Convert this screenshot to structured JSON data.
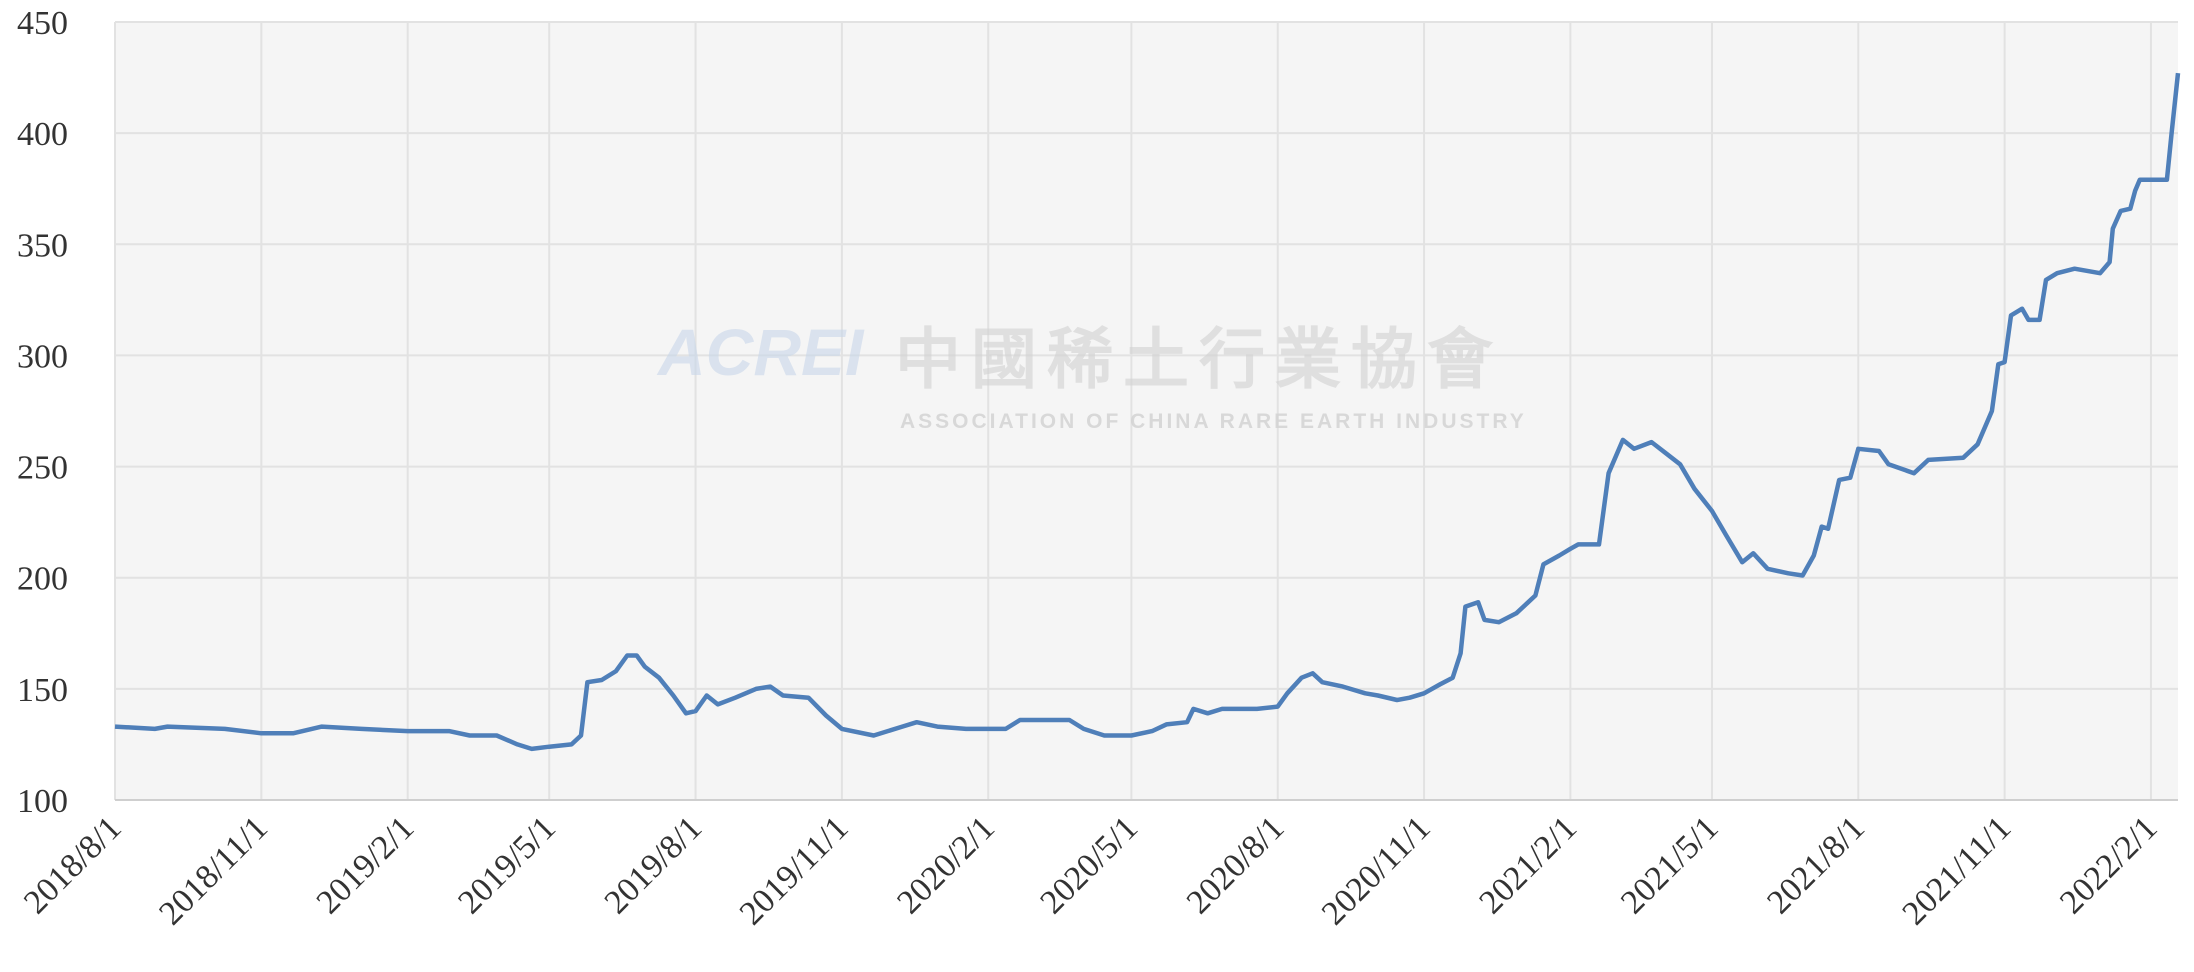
{
  "chart_data": {
    "type": "line",
    "watermark": {
      "logo": "ACREI",
      "name": "中國稀土行業協會",
      "subtitle": "ASSOCIATION OF CHINA RARE EARTH INDUSTRY"
    },
    "x": [
      "2018/8/1",
      "2018/8/26",
      "2018/9/3",
      "2018/10/9",
      "2018/11/1",
      "2018/11/21",
      "2018/12/9",
      "2019/1/3",
      "2019/2/1",
      "2019/2/27",
      "2019/3/12",
      "2019/3/29",
      "2019/4/11",
      "2019/4/20",
      "2019/5/1",
      "2019/5/15",
      "2019/5/21",
      "2019/5/25",
      "2019/6/3",
      "2019/6/12",
      "2019/6/19",
      "2019/6/25",
      "2019/6/30",
      "2019/7/9",
      "2019/7/18",
      "2019/7/26",
      "2019/8/1",
      "2019/8/8",
      "2019/8/15",
      "2019/8/26",
      "2019/9/8",
      "2019/9/17",
      "2019/9/25",
      "2019/10/11",
      "2019/10/22",
      "2019/11/1",
      "2019/11/21",
      "2019/12/9",
      "2019/12/18",
      "2019/12/31",
      "2020/1/18",
      "2020/2/1",
      "2020/2/12",
      "2020/2/21",
      "2020/3/23",
      "2020/4/1",
      "2020/4/14",
      "2020/5/1",
      "2020/5/14",
      "2020/5/23",
      "2020/6/5",
      "2020/6/9",
      "2020/6/18",
      "2020/6/27",
      "2020/7/19",
      "2020/8/1",
      "2020/8/7",
      "2020/8/16",
      "2020/8/23",
      "2020/8/29",
      "2020/9/11",
      "2020/9/25",
      "2020/10/3",
      "2020/10/15",
      "2020/10/23",
      "2020/11/1",
      "2020/11/11",
      "2020/11/19",
      "2020/11/24",
      "2020/11/27",
      "2020/12/5",
      "2020/12/9",
      "2020/12/18",
      "2020/12/29",
      "2021/1/10",
      "2021/1/15",
      "2021/1/25",
      "2021/2/1",
      "2021/2/6",
      "2021/2/19",
      "2021/2/25",
      "2021/3/6",
      "2021/3/13",
      "2021/3/24",
      "2021/4/2",
      "2021/4/11",
      "2021/4/20",
      "2021/5/1",
      "2021/5/10",
      "2021/5/20",
      "2021/5/27",
      "2021/6/5",
      "2021/6/18",
      "2021/6/27",
      "2021/7/4",
      "2021/7/9",
      "2021/7/13",
      "2021/7/20",
      "2021/7/27",
      "2021/8/1",
      "2021/8/14",
      "2021/8/20",
      "2021/9/5",
      "2021/9/14",
      "2021/10/6",
      "2021/10/15",
      "2021/10/24",
      "2021/10/28",
      "2021/11/1",
      "2021/11/5",
      "2021/11/12",
      "2021/11/16",
      "2021/11/23",
      "2021/11/27",
      "2021/12/4",
      "2021/12/15",
      "2021/12/31",
      "2022/1/6",
      "2022/1/8",
      "2022/1/13",
      "2022/1/19",
      "2022/1/22",
      "2022/1/25",
      "2022/2/11",
      "2022/2/14",
      "2022/2/18"
    ],
    "series": [
      {
        "color": "#4f7fb9",
        "values": [
          133,
          132,
          133,
          132,
          130,
          130,
          133,
          132,
          131,
          131,
          129,
          129,
          125,
          123,
          124,
          125,
          129,
          153,
          154,
          158,
          165,
          165,
          160,
          155,
          147,
          139,
          140,
          147,
          143,
          146,
          150,
          151,
          147,
          146,
          138,
          132,
          129,
          133,
          135,
          133,
          132,
          132,
          132,
          136,
          136,
          132,
          129,
          129,
          131,
          134,
          135,
          141,
          139,
          141,
          141,
          142,
          148,
          155,
          157,
          153,
          151,
          148,
          147,
          145,
          146,
          148,
          152,
          155,
          166,
          187,
          189,
          181,
          180,
          184,
          192,
          206,
          210,
          213,
          215,
          215,
          247,
          262,
          258,
          261,
          256,
          251,
          240,
          230,
          219,
          207,
          211,
          204,
          202,
          201,
          210,
          223,
          222,
          244,
          245,
          258,
          257,
          251,
          247,
          253,
          254,
          260,
          275,
          296,
          297,
          318,
          321,
          316,
          316,
          334,
          337,
          339,
          337,
          342,
          357,
          365,
          366,
          374,
          379,
          379,
          400,
          427
        ]
      }
    ],
    "xlim": [
      "2018/8/1",
      "2022/2/18"
    ],
    "xticks": [
      "2018/8/1",
      "2018/11/1",
      "2019/2/1",
      "2019/5/1",
      "2019/8/1",
      "2019/11/1",
      "2020/2/1",
      "2020/5/1",
      "2020/8/1",
      "2020/11/1",
      "2021/2/1",
      "2021/5/1",
      "2021/8/1",
      "2021/11/1",
      "2022/2/1"
    ],
    "ylim": [
      100,
      450
    ],
    "yticks": [
      100,
      150,
      200,
      250,
      300,
      350,
      400,
      450
    ],
    "grid": true
  }
}
